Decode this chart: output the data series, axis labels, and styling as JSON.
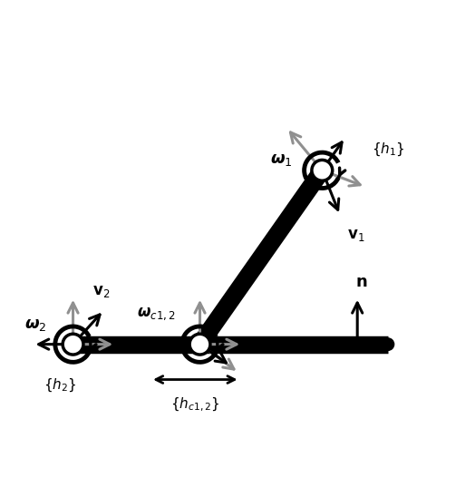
{
  "bg_color": "#ffffff",
  "fig_width": 5.24,
  "fig_height": 5.26,
  "dpi": 100,
  "joint2": [
    1.5,
    3.5
  ],
  "joint_c12": [
    4.2,
    3.5
  ],
  "joint1": [
    6.8,
    7.2
  ],
  "endpoint": [
    8.2,
    3.5
  ],
  "xlim": [
    0.0,
    10.0
  ],
  "ylim": [
    1.5,
    10.0
  ],
  "link_lw": 14,
  "link_color": "#000000",
  "gray": "#909090",
  "black": "#000000",
  "arrow_lw": 2.2,
  "arrow_ms": 20,
  "arc_lw": 3.5,
  "arc_lw2": 2.5,
  "joint_r": 0.22,
  "endpoint_r": 0.13
}
